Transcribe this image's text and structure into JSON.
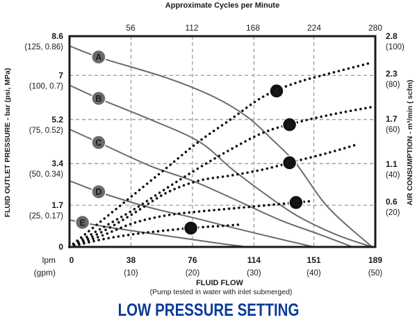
{
  "chart_data": {
    "type": "line",
    "title": "LOW PRESSURE SETTING",
    "top_axis": {
      "label": "Approximate Cycles per Minute",
      "ticks": [
        "56",
        "112",
        "168",
        "224",
        "280"
      ],
      "range": [
        0,
        280
      ]
    },
    "xaxis": {
      "label": "FLUID FLOW",
      "sublabel": "(Pump tested in water with inlet submerged)",
      "unit_primary": "lpm",
      "unit_secondary": "(gpm)",
      "range": [
        0,
        189
      ],
      "ticks": [
        {
          "value": 0,
          "label": "0",
          "sub": ""
        },
        {
          "value": 38,
          "label": "38",
          "sub": "(10)"
        },
        {
          "value": 76,
          "label": "76",
          "sub": "(20)"
        },
        {
          "value": 114,
          "label": "114",
          "sub": "(30)"
        },
        {
          "value": 151,
          "label": "151",
          "sub": "(40)"
        },
        {
          "value": 189,
          "label": "189",
          "sub": "(50)"
        }
      ]
    },
    "yaxis_left": {
      "label": "FLUID OUTLET PRESSURE - bar (psi, MPa)",
      "range": [
        0,
        8.6
      ],
      "ticks": [
        {
          "value": 0,
          "label": "0",
          "sub": ""
        },
        {
          "value": 1.7,
          "label": "1.7",
          "sub": "(25, 0.17)"
        },
        {
          "value": 3.4,
          "label": "3.4",
          "sub": "(50, 0.34)"
        },
        {
          "value": 5.2,
          "label": "5.2",
          "sub": "(75, 0.52)"
        },
        {
          "value": 7,
          "label": "7",
          "sub": "(100, 0.7)"
        },
        {
          "value": 8.6,
          "label": "8.6",
          "sub": "(125, 0.86)"
        }
      ]
    },
    "yaxis_right": {
      "label": "AIR CONSUMPTION - m³/min ( scfm)",
      "range": [
        0,
        2.8
      ],
      "ticks": [
        {
          "value": 0.6,
          "label": "0.6",
          "sub": "(20)"
        },
        {
          "value": 1.1,
          "label": "1.1",
          "sub": "(40)"
        },
        {
          "value": 1.7,
          "label": "1.7",
          "sub": "(60)"
        },
        {
          "value": 2.3,
          "label": "2.3",
          "sub": "(80)"
        },
        {
          "value": 2.8,
          "label": "2.8",
          "sub": "(100)"
        }
      ]
    },
    "grid": true,
    "pressure_series": [
      {
        "name": "A",
        "axis": "left",
        "style": "solid",
        "x": [
          0,
          20,
          60,
          90,
          110,
          125,
          140,
          160,
          187
        ],
        "y": [
          8.2,
          7.7,
          6.9,
          6.1,
          5.3,
          4.4,
          3.4,
          1.6,
          0
        ]
      },
      {
        "name": "B",
        "axis": "left",
        "style": "solid",
        "x": [
          0,
          20,
          50,
          80,
          100,
          120,
          140,
          165,
          187
        ],
        "y": [
          6.6,
          6.0,
          5.2,
          4.3,
          3.2,
          2.2,
          1.3,
          0.5,
          0
        ]
      },
      {
        "name": "C",
        "axis": "left",
        "style": "solid",
        "x": [
          0,
          20,
          50,
          76,
          100,
          130,
          155,
          175
        ],
        "y": [
          4.8,
          4.2,
          3.3,
          2.7,
          2.0,
          1.1,
          0.5,
          0
        ]
      },
      {
        "name": "D",
        "axis": "left",
        "style": "solid",
        "x": [
          0,
          20,
          50,
          76,
          100,
          125,
          151
        ],
        "y": [
          2.7,
          2.2,
          1.6,
          1.2,
          0.8,
          0.4,
          0
        ]
      },
      {
        "name": "E",
        "axis": "left",
        "style": "solid",
        "x": [
          0,
          20,
          50,
          76,
          95,
          110
        ],
        "y": [
          1.1,
          0.85,
          0.55,
          0.3,
          0.12,
          0
        ]
      }
    ],
    "air_series": [
      {
        "name": "A",
        "axis": "right",
        "style": "dotted",
        "x": [
          0,
          20,
          40,
          60,
          80,
          100,
          120,
          140,
          160,
          187
        ],
        "y": [
          0,
          0.35,
          0.7,
          1.05,
          1.4,
          1.7,
          2.0,
          2.18,
          2.3,
          2.45
        ]
      },
      {
        "name": "B",
        "axis": "right",
        "style": "dotted",
        "x": [
          0,
          20,
          40,
          60,
          80,
          100,
          120,
          140,
          160,
          187
        ],
        "y": [
          0,
          0.25,
          0.5,
          0.78,
          1.05,
          1.3,
          1.52,
          1.65,
          1.75,
          1.86
        ]
      },
      {
        "name": "C",
        "axis": "right",
        "style": "dotted",
        "x": [
          0,
          20,
          40,
          60,
          80,
          100,
          120,
          140,
          160,
          176
        ],
        "y": [
          0,
          0.2,
          0.45,
          0.72,
          0.88,
          0.95,
          1.03,
          1.14,
          1.25,
          1.35
        ]
      },
      {
        "name": "D",
        "axis": "right",
        "style": "dotted",
        "x": [
          0,
          20,
          40,
          60,
          80,
          100,
          120,
          140,
          150
        ],
        "y": [
          0,
          0.15,
          0.32,
          0.42,
          0.47,
          0.51,
          0.55,
          0.59,
          0.61
        ]
      },
      {
        "name": "E",
        "axis": "right",
        "style": "dotted",
        "x": [
          0,
          20,
          40,
          60,
          80,
          95,
          107
        ],
        "y": [
          0,
          0.1,
          0.17,
          0.22,
          0.26,
          0.28,
          0.3
        ]
      }
    ],
    "pressure_label_positions": {
      "A": 18,
      "B": 18,
      "C": 18,
      "D": 18,
      "E": 8
    },
    "air_label_positions": {
      "A": 128,
      "B": 136,
      "C": 136,
      "D": 140,
      "E": 75
    }
  }
}
